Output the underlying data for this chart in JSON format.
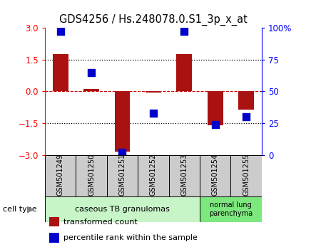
{
  "title": "GDS4256 / Hs.248078.0.S1_3p_x_at",
  "samples": [
    "GSM501249",
    "GSM501250",
    "GSM501251",
    "GSM501252",
    "GSM501253",
    "GSM501254",
    "GSM501255"
  ],
  "red_bars": [
    1.75,
    0.12,
    -2.85,
    -0.05,
    1.75,
    -1.6,
    -0.85
  ],
  "blue_dots": [
    97,
    65,
    2,
    33,
    97,
    24,
    30
  ],
  "ylim_left": [
    -3,
    3
  ],
  "ylim_right": [
    0,
    100
  ],
  "yticks_left": [
    -3,
    -1.5,
    0,
    1.5,
    3
  ],
  "yticks_right": [
    0,
    25,
    50,
    75,
    100
  ],
  "group1_label": "caseous TB granulomas",
  "group2_label": "normal lung\nparenchyma",
  "group1_color": "#c8f5c8",
  "group2_color": "#7de87d",
  "cell_type_label": "cell type",
  "bar_color": "#aa1111",
  "dot_color": "#0000cc",
  "zero_line_color": "#cc0000",
  "bar_width": 0.5,
  "dot_size": 50,
  "background_gray": "#cccccc"
}
